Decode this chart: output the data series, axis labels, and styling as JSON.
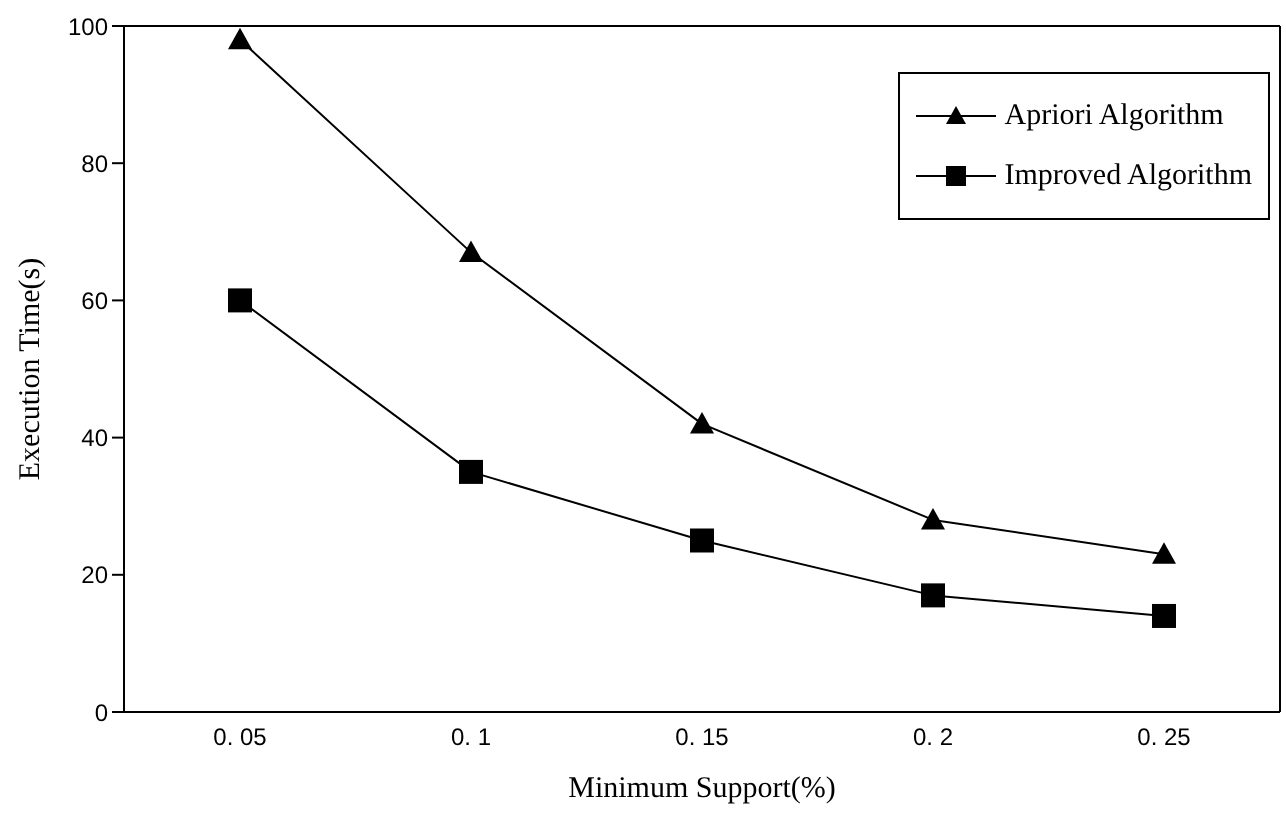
{
  "chart_data": {
    "type": "line",
    "xlabel": "Minimum  Support(%)",
    "ylabel": "Execution Time(s)",
    "categories": [
      "0. 05",
      "0. 1",
      "0. 15",
      "0. 2",
      "0. 25"
    ],
    "series": [
      {
        "name": "Apriori Algorithm",
        "color": "#000000",
        "marker": "triangle",
        "values": [
          98,
          67,
          42,
          28,
          23
        ]
      },
      {
        "name": "Improved Algorithm",
        "color": "#000000",
        "marker": "square",
        "values": [
          60,
          35,
          25,
          17,
          14
        ]
      }
    ],
    "ylim": [
      0,
      100
    ],
    "yticks": [
      0,
      20,
      40,
      60,
      80,
      100
    ],
    "grid": false,
    "legend": "top right",
    "line_style": "solid"
  }
}
